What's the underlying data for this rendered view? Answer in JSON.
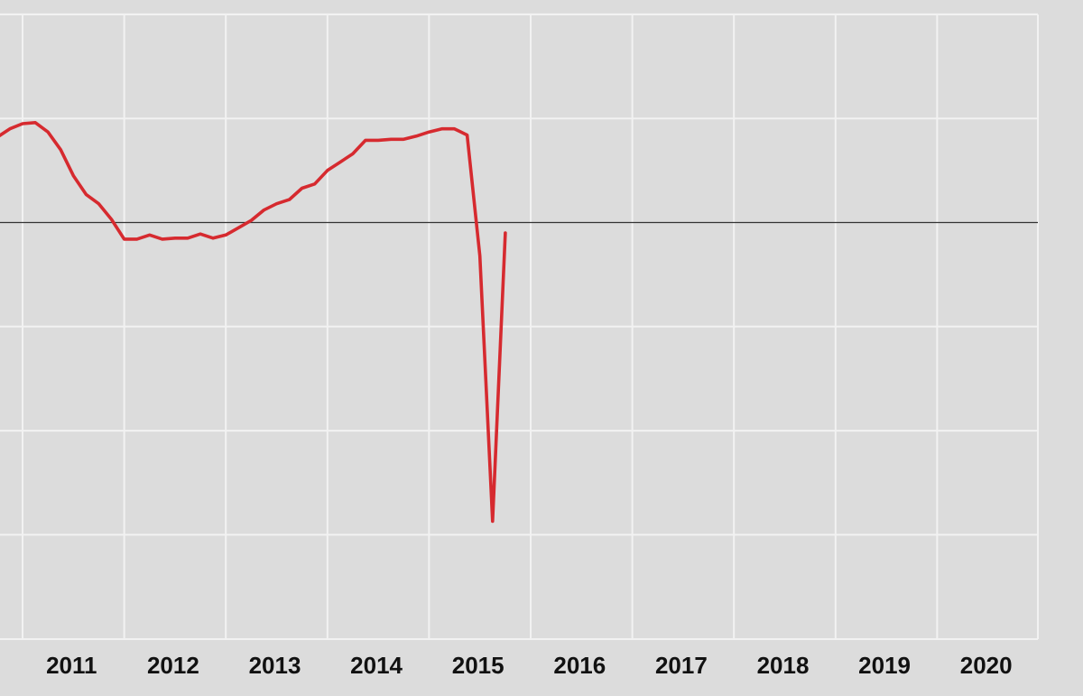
{
  "chart_data": {
    "type": "line",
    "title": "",
    "xlabel": "",
    "ylabel": "",
    "x_tick_labels": [
      "2011",
      "2012",
      "2013",
      "2014",
      "2015",
      "2016",
      "2017",
      "2018",
      "2019",
      "2020"
    ],
    "xlim": [
      2010.25,
      2020.5
    ],
    "ylim": [
      -4,
      2
    ],
    "y_gridlines": [
      2,
      1,
      0,
      -1,
      -2,
      -3
    ],
    "zero_line": 0,
    "grid": true,
    "colors": {
      "background": "#dcdcdc",
      "grid": "#f2f2f2",
      "zero_line": "#333333",
      "line": "#d62a2f"
    },
    "series": [
      {
        "color": "#d62a2f",
        "points": [
          [
            2010.25,
            0.82
          ],
          [
            2010.375,
            0.9
          ],
          [
            2010.5,
            0.95
          ],
          [
            2010.625,
            0.96
          ],
          [
            2010.75,
            0.87
          ],
          [
            2010.875,
            0.7
          ],
          [
            2011.0,
            0.45
          ],
          [
            2011.125,
            0.27
          ],
          [
            2011.25,
            0.18
          ],
          [
            2011.375,
            0.03
          ],
          [
            2011.5,
            -0.16
          ],
          [
            2011.625,
            -0.16
          ],
          [
            2011.75,
            -0.12
          ],
          [
            2011.875,
            -0.16
          ],
          [
            2012.0,
            -0.15
          ],
          [
            2012.125,
            -0.15
          ],
          [
            2012.25,
            -0.11
          ],
          [
            2012.375,
            -0.15
          ],
          [
            2012.5,
            -0.12
          ],
          [
            2012.625,
            -0.05
          ],
          [
            2012.75,
            0.02
          ],
          [
            2012.875,
            0.12
          ],
          [
            2013.0,
            0.18
          ],
          [
            2013.125,
            0.22
          ],
          [
            2013.25,
            0.33
          ],
          [
            2013.375,
            0.37
          ],
          [
            2013.5,
            0.5
          ],
          [
            2013.625,
            0.58
          ],
          [
            2013.75,
            0.66
          ],
          [
            2013.875,
            0.79
          ],
          [
            2014.0,
            0.79
          ],
          [
            2014.125,
            0.8
          ],
          [
            2014.25,
            0.8
          ],
          [
            2014.375,
            0.83
          ],
          [
            2014.5,
            0.87
          ],
          [
            2014.625,
            0.9
          ],
          [
            2014.75,
            0.9
          ],
          [
            2014.875,
            0.84
          ],
          [
            2015.0,
            -0.32
          ],
          [
            2015.125,
            -2.87
          ],
          [
            2015.25,
            -0.1
          ]
        ]
      }
    ]
  }
}
